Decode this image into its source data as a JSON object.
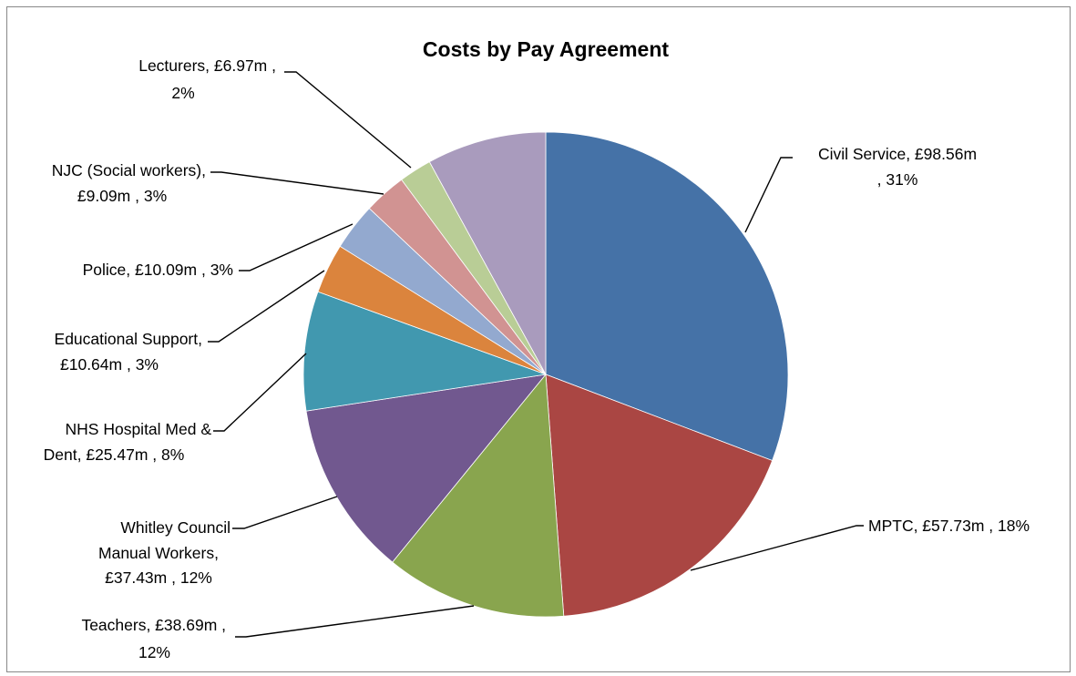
{
  "chart_data": {
    "type": "pie",
    "title": "Costs by Pay Agreement",
    "slices": [
      {
        "label_lines": [
          "Civil Service, £98.56m",
          ", 31%"
        ],
        "category": "Civil Service",
        "value": 98.56,
        "percent": "31%",
        "color": "#4572A7"
      },
      {
        "label_lines": [
          "MPTC, £57.73m , 18%"
        ],
        "category": "MPTC",
        "value": 57.73,
        "percent": "18%",
        "color": "#AA4643"
      },
      {
        "label_lines": [
          "Teachers, £38.69m ,",
          "12%"
        ],
        "category": "Teachers",
        "value": 38.69,
        "percent": "12%",
        "color": "#89A54E"
      },
      {
        "label_lines": [
          "Whitley Council",
          "Manual Workers,",
          "£37.43m , 12%"
        ],
        "category": "Whitley Council Manual Workers",
        "value": 37.43,
        "percent": "12%",
        "color": "#71588F"
      },
      {
        "label_lines": [
          "NHS Hospital Med &",
          "Dent, £25.47m , 8%"
        ],
        "category": "NHS Hospital Med & Dent",
        "value": 25.47,
        "percent": "8%",
        "color": "#4198AF"
      },
      {
        "label_lines": [
          "Educational Support,",
          "£10.64m , 3%"
        ],
        "category": "Educational Support",
        "value": 10.64,
        "percent": "3%",
        "color": "#DB843D"
      },
      {
        "label_lines": [
          "Police, £10.09m , 3%"
        ],
        "category": "Police",
        "value": 10.09,
        "percent": "3%",
        "color": "#93A9CF"
      },
      {
        "label_lines": [
          "NJC (Social workers),",
          "£9.09m , 3%"
        ],
        "category": "NJC (Social workers)",
        "value": 9.09,
        "percent": "3%",
        "color": "#D19392"
      },
      {
        "label_lines": [
          "Lecturers, £6.97m ,",
          "2%"
        ],
        "category": "Lecturers",
        "value": 6.97,
        "percent": "2%",
        "color": "#B9CD96"
      },
      {
        "label_lines": [],
        "category": "",
        "value": 25.5,
        "percent": "",
        "color": "#A99BBD"
      }
    ],
    "legend": "none"
  }
}
